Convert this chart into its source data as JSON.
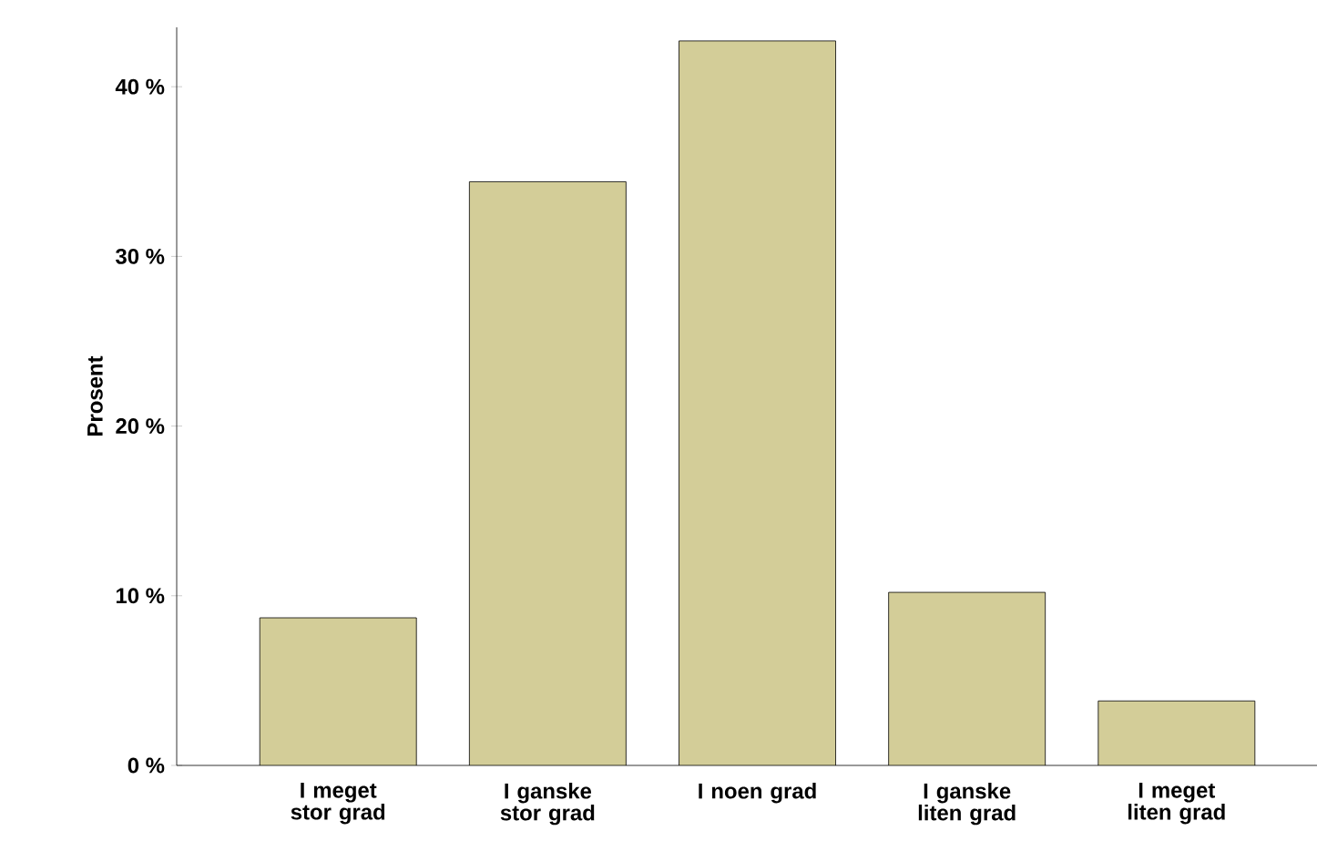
{
  "chart_data": {
    "type": "bar",
    "ylabel": "Prosent",
    "categories": [
      "I meget stor grad",
      "I ganske stor grad",
      "I noen grad",
      "I ganske liten grad",
      "I meget liten grad"
    ],
    "values": [
      8.7,
      34.4,
      42.7,
      10.2,
      3.8
    ],
    "color": "#d3cd98",
    "ylim": [
      0,
      43.5
    ],
    "yticks": [
      {
        "value": 0,
        "label": "0 %"
      },
      {
        "value": 10,
        "label": "10 %"
      },
      {
        "value": 20,
        "label": "20 %"
      },
      {
        "value": 30,
        "label": "30 %"
      },
      {
        "value": 40,
        "label": "40 %"
      }
    ],
    "grid": false
  }
}
